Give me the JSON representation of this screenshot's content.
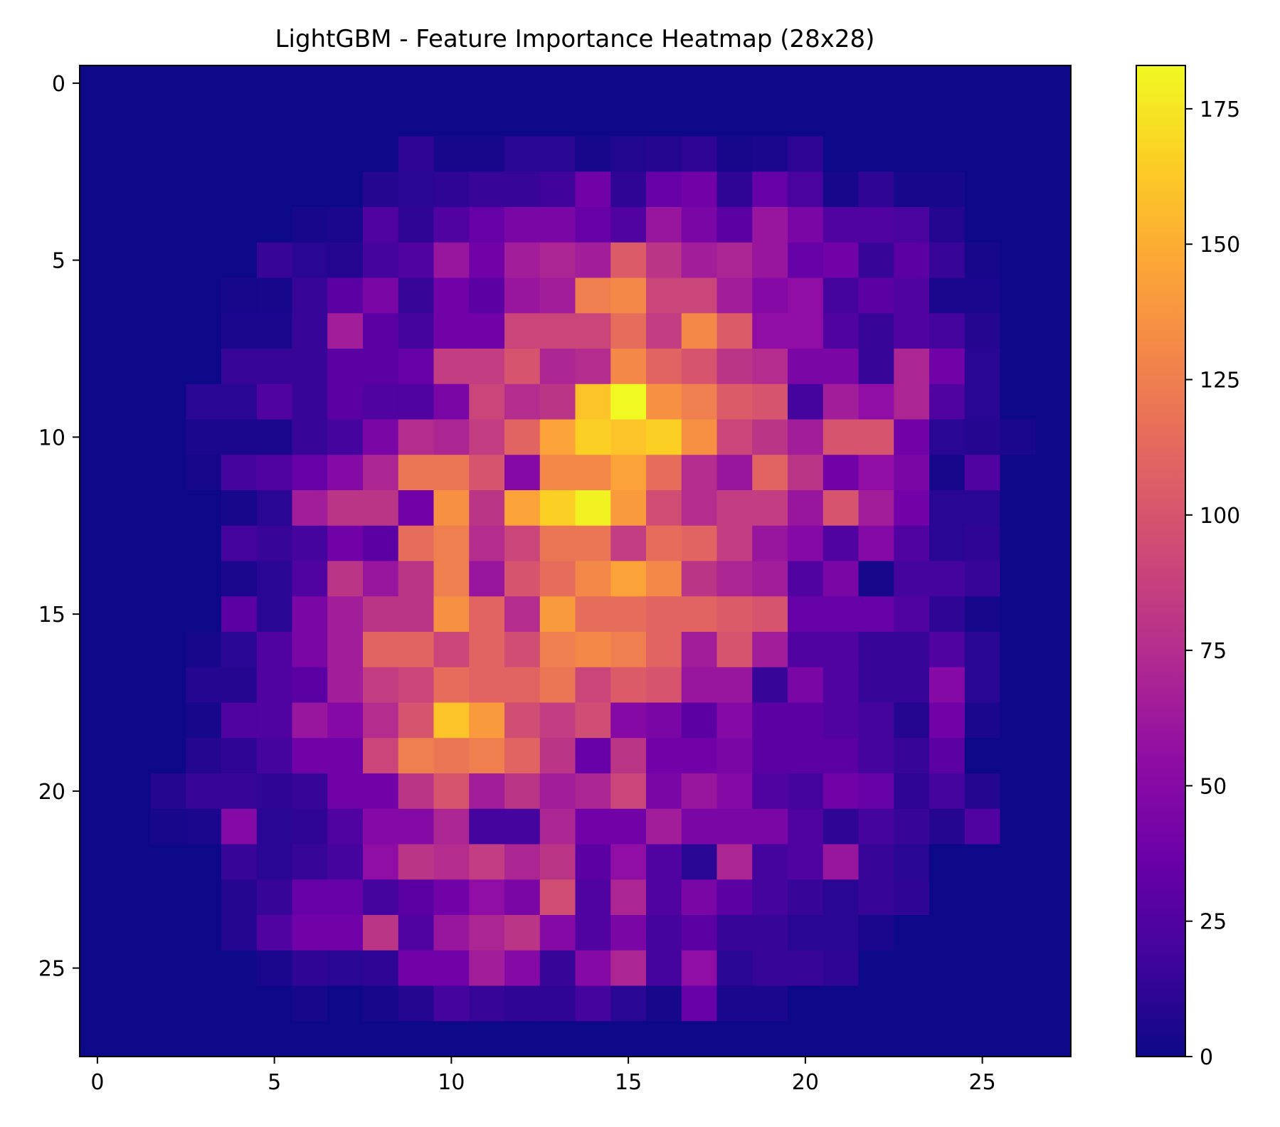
{
  "chart_data": {
    "type": "heatmap",
    "title": "LightGBM - Feature Importance Heatmap (28x28)",
    "xlabel": "",
    "ylabel": "",
    "x_ticks": [
      0,
      5,
      10,
      15,
      20,
      25
    ],
    "y_ticks": [
      0,
      5,
      10,
      15,
      20,
      25
    ],
    "x_range": [
      -0.5,
      27.5
    ],
    "y_range": [
      -0.5,
      27.5
    ],
    "y_inverted": true,
    "colormap": "plasma",
    "vmin": 0,
    "vmax": 183,
    "colorbar_ticks": [
      0,
      25,
      50,
      75,
      100,
      125,
      150,
      175
    ],
    "grid": false,
    "rows": 28,
    "cols": 28,
    "matrix": [
      [
        0,
        0,
        0,
        0,
        0,
        0,
        0,
        0,
        0,
        0,
        0,
        0,
        0,
        0,
        0,
        0,
        0,
        0,
        0,
        0,
        0,
        0,
        0,
        0,
        0,
        0,
        0,
        0
      ],
      [
        0,
        0,
        0,
        0,
        0,
        0,
        0,
        0,
        0,
        0,
        0,
        0,
        0,
        0,
        0,
        0,
        0,
        0,
        0,
        0,
        0,
        0,
        0,
        0,
        0,
        0,
        0,
        0
      ],
      [
        0,
        0,
        0,
        0,
        0,
        0,
        0,
        0,
        0,
        12,
        3,
        3,
        10,
        10,
        3,
        7,
        8,
        12,
        3,
        5,
        12,
        0,
        0,
        0,
        0,
        0,
        0,
        0
      ],
      [
        0,
        0,
        0,
        0,
        0,
        0,
        0,
        0,
        8,
        10,
        12,
        15,
        15,
        18,
        40,
        12,
        35,
        40,
        12,
        35,
        22,
        3,
        12,
        3,
        3,
        0,
        0,
        0
      ],
      [
        0,
        0,
        0,
        0,
        0,
        0,
        3,
        5,
        25,
        12,
        25,
        35,
        45,
        45,
        35,
        25,
        60,
        45,
        30,
        60,
        45,
        25,
        25,
        22,
        8,
        0,
        0,
        0
      ],
      [
        0,
        0,
        0,
        0,
        0,
        15,
        10,
        8,
        20,
        25,
        60,
        40,
        65,
        70,
        65,
        105,
        80,
        65,
        70,
        60,
        35,
        40,
        15,
        30,
        15,
        3,
        0,
        0
      ],
      [
        0,
        0,
        0,
        0,
        3,
        3,
        15,
        30,
        45,
        15,
        40,
        30,
        60,
        65,
        125,
        130,
        90,
        90,
        65,
        50,
        55,
        20,
        30,
        25,
        5,
        5,
        0,
        0
      ],
      [
        0,
        0,
        0,
        0,
        5,
        5,
        15,
        65,
        30,
        20,
        40,
        40,
        90,
        90,
        90,
        115,
        85,
        130,
        105,
        55,
        55,
        25,
        15,
        25,
        20,
        8,
        0,
        0
      ],
      [
        0,
        0,
        0,
        0,
        15,
        15,
        15,
        30,
        30,
        35,
        85,
        85,
        100,
        70,
        75,
        130,
        110,
        100,
        80,
        75,
        45,
        45,
        15,
        70,
        40,
        10,
        0,
        0
      ],
      [
        0,
        0,
        0,
        10,
        10,
        25,
        15,
        30,
        25,
        25,
        45,
        90,
        75,
        80,
        160,
        183,
        135,
        125,
        105,
        100,
        20,
        65,
        55,
        70,
        25,
        10,
        0,
        0
      ],
      [
        0,
        0,
        0,
        5,
        5,
        5,
        15,
        20,
        45,
        75,
        70,
        85,
        110,
        145,
        165,
        160,
        165,
        135,
        90,
        80,
        65,
        100,
        100,
        40,
        10,
        8,
        5,
        0
      ],
      [
        0,
        0,
        0,
        3,
        20,
        25,
        35,
        50,
        70,
        120,
        120,
        100,
        50,
        130,
        130,
        145,
        115,
        75,
        60,
        110,
        80,
        40,
        55,
        45,
        3,
        25,
        0,
        0
      ],
      [
        0,
        0,
        0,
        0,
        3,
        10,
        65,
        80,
        80,
        40,
        135,
        80,
        145,
        165,
        180,
        140,
        95,
        75,
        85,
        85,
        60,
        100,
        65,
        40,
        10,
        10,
        0,
        0
      ],
      [
        0,
        0,
        0,
        0,
        20,
        15,
        20,
        40,
        30,
        115,
        125,
        75,
        90,
        120,
        120,
        85,
        115,
        110,
        85,
        60,
        50,
        25,
        50,
        25,
        10,
        12,
        0,
        0
      ],
      [
        0,
        0,
        0,
        0,
        5,
        10,
        25,
        80,
        60,
        80,
        125,
        60,
        100,
        115,
        130,
        145,
        130,
        80,
        70,
        65,
        25,
        45,
        3,
        20,
        20,
        15,
        0,
        0
      ],
      [
        0,
        0,
        0,
        0,
        30,
        10,
        45,
        65,
        80,
        80,
        135,
        110,
        75,
        140,
        115,
        115,
        110,
        110,
        105,
        100,
        35,
        35,
        35,
        25,
        12,
        3,
        0,
        0
      ],
      [
        0,
        0,
        0,
        3,
        10,
        25,
        45,
        65,
        110,
        110,
        90,
        110,
        95,
        125,
        130,
        125,
        110,
        65,
        100,
        65,
        25,
        25,
        15,
        15,
        25,
        10,
        0,
        0
      ],
      [
        0,
        0,
        0,
        8,
        8,
        25,
        30,
        65,
        85,
        90,
        115,
        110,
        110,
        120,
        90,
        105,
        100,
        60,
        60,
        15,
        45,
        25,
        15,
        15,
        50,
        10,
        0,
        0
      ],
      [
        0,
        0,
        0,
        3,
        25,
        25,
        60,
        50,
        75,
        100,
        160,
        140,
        95,
        85,
        95,
        50,
        45,
        30,
        50,
        30,
        30,
        25,
        20,
        8,
        40,
        5,
        0,
        0
      ],
      [
        0,
        0,
        0,
        8,
        12,
        20,
        40,
        40,
        90,
        125,
        120,
        125,
        110,
        80,
        35,
        80,
        40,
        40,
        45,
        30,
        30,
        30,
        20,
        15,
        30,
        0,
        0,
        0
      ],
      [
        0,
        0,
        8,
        15,
        15,
        12,
        15,
        40,
        40,
        80,
        100,
        65,
        80,
        65,
        70,
        90,
        45,
        60,
        50,
        25,
        20,
        40,
        35,
        12,
        20,
        8,
        0,
        0
      ],
      [
        0,
        0,
        3,
        5,
        50,
        10,
        12,
        25,
        50,
        50,
        70,
        20,
        20,
        70,
        40,
        40,
        65,
        45,
        45,
        45,
        25,
        12,
        20,
        15,
        8,
        25,
        0,
        0
      ],
      [
        0,
        0,
        0,
        0,
        15,
        10,
        15,
        20,
        55,
        80,
        75,
        85,
        70,
        80,
        30,
        55,
        25,
        10,
        70,
        20,
        25,
        60,
        15,
        10,
        0,
        0,
        0,
        0
      ],
      [
        0,
        0,
        0,
        0,
        8,
        15,
        35,
        35,
        20,
        30,
        40,
        55,
        45,
        95,
        25,
        70,
        25,
        45,
        30,
        20,
        15,
        10,
        15,
        12,
        0,
        0,
        0,
        0
      ],
      [
        0,
        0,
        0,
        0,
        8,
        25,
        40,
        40,
        80,
        25,
        60,
        70,
        80,
        50,
        25,
        45,
        20,
        30,
        15,
        15,
        10,
        10,
        5,
        0,
        0,
        0,
        0,
        0
      ],
      [
        0,
        0,
        0,
        0,
        0,
        5,
        12,
        10,
        12,
        40,
        40,
        65,
        50,
        15,
        50,
        70,
        20,
        55,
        10,
        15,
        15,
        12,
        0,
        0,
        0,
        0,
        0,
        0
      ],
      [
        0,
        0,
        0,
        0,
        0,
        0,
        3,
        0,
        3,
        8,
        20,
        15,
        12,
        12,
        20,
        10,
        3,
        35,
        5,
        5,
        0,
        0,
        0,
        0,
        0,
        0,
        0,
        0
      ],
      [
        0,
        0,
        0,
        0,
        0,
        0,
        0,
        0,
        0,
        0,
        0,
        0,
        0,
        0,
        0,
        0,
        0,
        0,
        0,
        0,
        0,
        0,
        0,
        0,
        0,
        0,
        0,
        0
      ]
    ]
  }
}
